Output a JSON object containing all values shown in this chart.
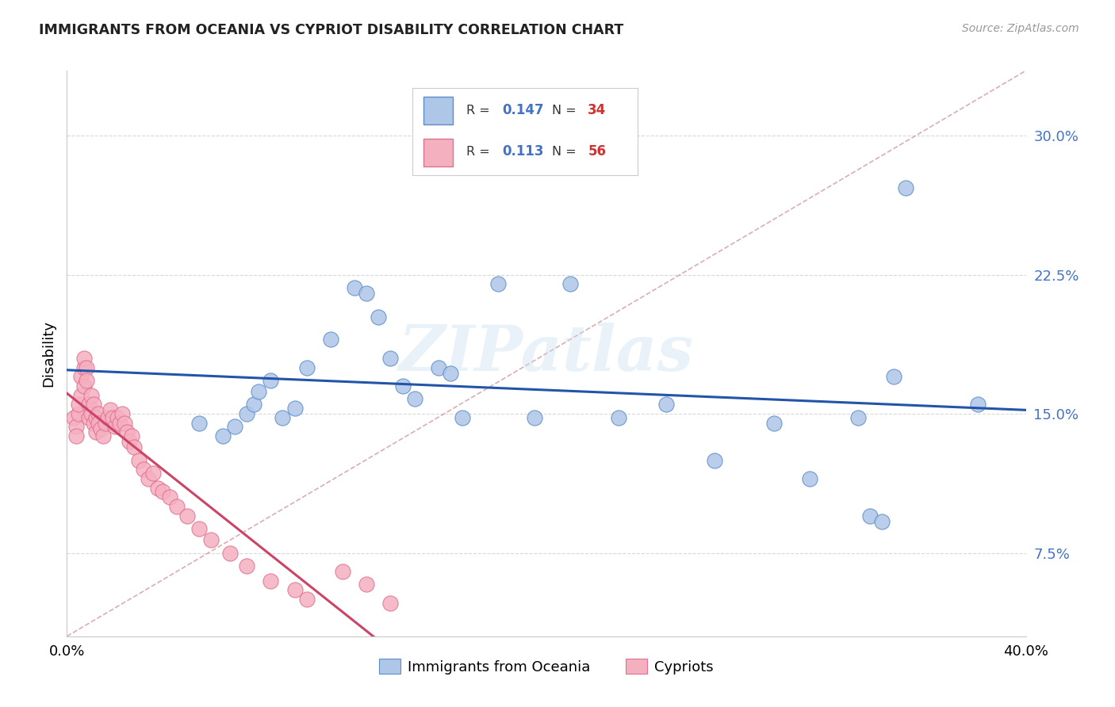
{
  "title": "IMMIGRANTS FROM OCEANIA VS CYPRIOT DISABILITY CORRELATION CHART",
  "source": "Source: ZipAtlas.com",
  "ylabel": "Disability",
  "xlim": [
    0.0,
    0.4
  ],
  "ylim": [
    0.03,
    0.335
  ],
  "yticks": [
    0.075,
    0.15,
    0.225,
    0.3
  ],
  "ytick_labels": [
    "7.5%",
    "15.0%",
    "22.5%",
    "30.0%"
  ],
  "xtick_labels": [
    "0.0%",
    "40.0%"
  ],
  "xtick_positions": [
    0.0,
    0.4
  ],
  "r_blue": "0.147",
  "n_blue": "34",
  "r_pink": "0.113",
  "n_pink": "56",
  "watermark": "ZIPatlas",
  "blue_fill": "#aec6e8",
  "blue_edge": "#5b8dc8",
  "blue_line": "#2255aa",
  "pink_fill": "#f5b0c0",
  "pink_edge": "#e07090",
  "pink_line": "#cc4466",
  "dashed_color": "#d0a0a8",
  "grid_color": "#d8d8d8",
  "background_color": "#ffffff",
  "blue_scatter_x": [
    0.055,
    0.065,
    0.07,
    0.075,
    0.078,
    0.08,
    0.085,
    0.09,
    0.095,
    0.1,
    0.11,
    0.12,
    0.125,
    0.13,
    0.135,
    0.14,
    0.145,
    0.155,
    0.16,
    0.165,
    0.18,
    0.195,
    0.21,
    0.23,
    0.25,
    0.27,
    0.295,
    0.31,
    0.33,
    0.335,
    0.34,
    0.345,
    0.35,
    0.38
  ],
  "blue_scatter_y": [
    0.145,
    0.138,
    0.143,
    0.15,
    0.155,
    0.162,
    0.168,
    0.148,
    0.153,
    0.175,
    0.19,
    0.218,
    0.215,
    0.202,
    0.18,
    0.165,
    0.158,
    0.175,
    0.172,
    0.148,
    0.22,
    0.148,
    0.22,
    0.148,
    0.155,
    0.125,
    0.145,
    0.115,
    0.148,
    0.095,
    0.092,
    0.17,
    0.272,
    0.155
  ],
  "pink_scatter_x": [
    0.003,
    0.004,
    0.004,
    0.005,
    0.005,
    0.006,
    0.006,
    0.007,
    0.007,
    0.007,
    0.008,
    0.008,
    0.009,
    0.009,
    0.01,
    0.01,
    0.011,
    0.011,
    0.012,
    0.012,
    0.013,
    0.013,
    0.014,
    0.015,
    0.016,
    0.017,
    0.018,
    0.019,
    0.02,
    0.021,
    0.022,
    0.023,
    0.024,
    0.025,
    0.026,
    0.027,
    0.028,
    0.03,
    0.032,
    0.034,
    0.036,
    0.038,
    0.04,
    0.043,
    0.046,
    0.05,
    0.055,
    0.06,
    0.068,
    0.075,
    0.085,
    0.095,
    0.1,
    0.115,
    0.125,
    0.135
  ],
  "pink_scatter_y": [
    0.148,
    0.143,
    0.138,
    0.15,
    0.155,
    0.16,
    0.17,
    0.175,
    0.18,
    0.165,
    0.175,
    0.168,
    0.155,
    0.148,
    0.16,
    0.15,
    0.145,
    0.155,
    0.14,
    0.148,
    0.15,
    0.145,
    0.142,
    0.138,
    0.145,
    0.148,
    0.152,
    0.148,
    0.143,
    0.148,
    0.145,
    0.15,
    0.145,
    0.14,
    0.135,
    0.138,
    0.132,
    0.125,
    0.12,
    0.115,
    0.118,
    0.11,
    0.108,
    0.105,
    0.1,
    0.095,
    0.088,
    0.082,
    0.075,
    0.068,
    0.06,
    0.055,
    0.05,
    0.065,
    0.058,
    0.048
  ]
}
